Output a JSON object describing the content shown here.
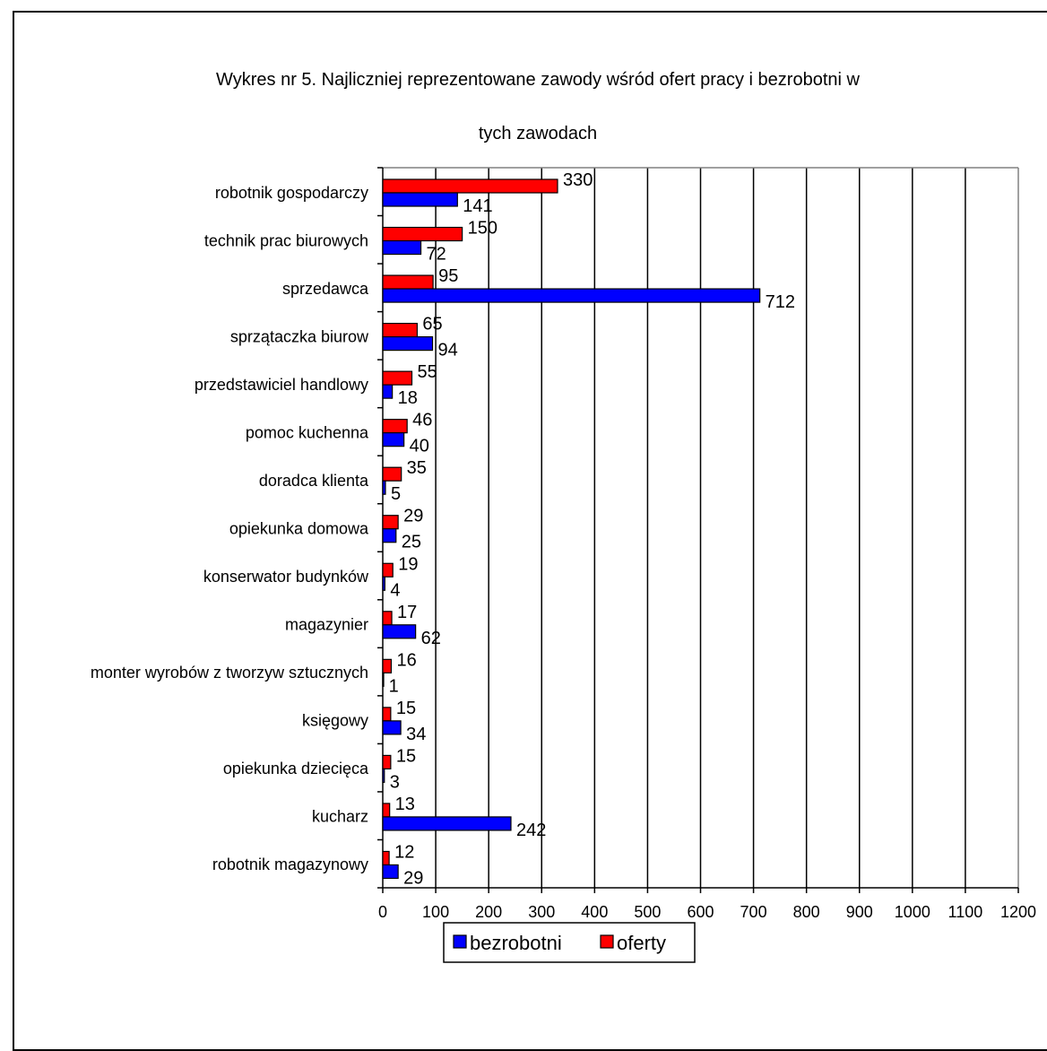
{
  "chart_data": {
    "type": "bar",
    "orientation": "horizontal",
    "title": "Wykres nr 5. Najliczniej reprezentowane zawody wśród ofert pracy i bezrobotni w tych zawodach",
    "title_lines": [
      "Wykres nr 5. Najliczniej reprezentowane zawody wśród ofert pracy i bezrobotni w",
      "tych zawodach"
    ],
    "categories": [
      "robotnik gospodarczy",
      "technik prac biurowych",
      "sprzedawca",
      "sprzątaczka biurow",
      "przedstawiciel handlowy",
      "pomoc kuchenna",
      "doradca klienta",
      "opiekunka domowa",
      "konserwator budynków",
      "magazynier",
      "monter wyrobów z tworzyw sztucznych",
      "księgowy",
      "opiekunka dziecięca",
      "kucharz",
      "robotnik magazynowy"
    ],
    "series": [
      {
        "name": "bezrobotni",
        "color": "#0000ff",
        "values": [
          141,
          72,
          712,
          94,
          18,
          40,
          5,
          25,
          4,
          62,
          1,
          34,
          3,
          242,
          29
        ]
      },
      {
        "name": "oferty",
        "color": "#ff0000",
        "values": [
          330,
          150,
          95,
          65,
          55,
          46,
          35,
          29,
          19,
          17,
          16,
          15,
          15,
          13,
          12
        ]
      }
    ],
    "xlim": [
      0,
      1200
    ],
    "x_ticks": [
      0,
      100,
      200,
      300,
      400,
      500,
      600,
      700,
      800,
      900,
      1000,
      1100,
      1200
    ],
    "grid": "vertical",
    "legend": "bottom",
    "data_labels": true
  }
}
